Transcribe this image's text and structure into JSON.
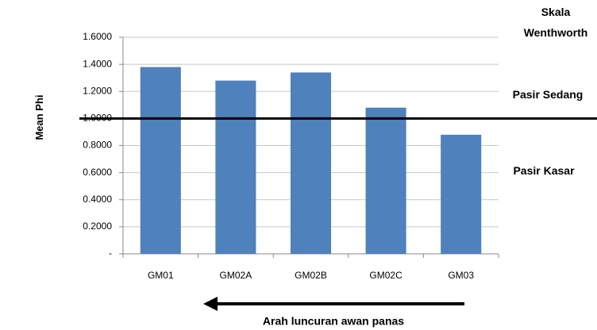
{
  "chart_data": {
    "type": "bar",
    "categories": [
      "GM01",
      "GM02A",
      "GM02B",
      "GM02C",
      "GM03"
    ],
    "values": [
      1.38,
      1.28,
      1.34,
      1.08,
      0.88
    ],
    "color": "#4f81bd",
    "ylim": [
      0,
      1.6
    ],
    "yticks": [
      {
        "value": 0,
        "label": "-"
      },
      {
        "value": 0.2,
        "label": "0.2000"
      },
      {
        "value": 0.4,
        "label": "0.4000"
      },
      {
        "value": 0.6,
        "label": "0.6000"
      },
      {
        "value": 0.8,
        "label": "0.8000"
      },
      {
        "value": 1,
        "label": "1.0000"
      },
      {
        "value": 1.2,
        "label": "1.2000"
      },
      {
        "value": 1.4,
        "label": "1.4000"
      },
      {
        "value": 1.6,
        "label": "1.6000"
      }
    ],
    "grid": true,
    "y_axis_label": "Mean Phi",
    "x_axis_label": "Arah luncuran awan panas",
    "reference_line": 1,
    "scale_title": "Skala Wenthworth",
    "zone_labels": [
      "Pasir Sedang",
      "Pasir Kasar"
    ]
  }
}
